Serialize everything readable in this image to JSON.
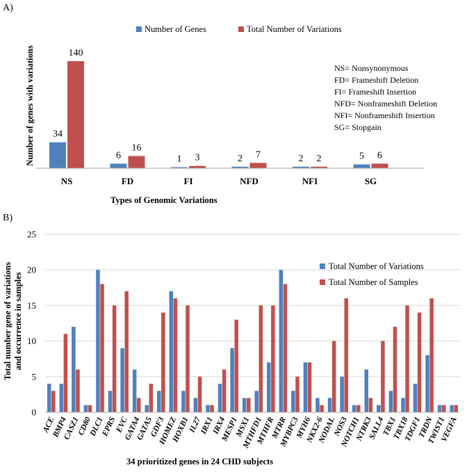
{
  "colors": {
    "blue": "#4f81bd",
    "red": "#c0504d",
    "axis": "#a6a6a6",
    "grid": "#d9d9d9"
  },
  "chart_data": [
    {
      "panel_label": "A)",
      "type": "bar",
      "categories": [
        "NS",
        "FD",
        "FI",
        "NFD",
        "NFI",
        "SG"
      ],
      "series": [
        {
          "name": "Number of Genes",
          "values": [
            34,
            6,
            1,
            2,
            2,
            5
          ]
        },
        {
          "name": "Total Number of Variations",
          "values": [
            140,
            16,
            3,
            7,
            2,
            6
          ]
        }
      ],
      "xlabel": "Types of Genomic Variations",
      "ylabel": "Number of genes with variations",
      "ylim": [
        0,
        140
      ],
      "legend": "top",
      "data_labels": true,
      "annotations": [
        "NS= Nonsynonymous",
        "FD= Frameshift Deletion",
        "FI= Frameshift Insertion",
        "NFD= Nonframeshift Deletion",
        "NFI= Nonframeshift Insertion",
        "SG= Stopgain"
      ]
    },
    {
      "panel_label": "B)",
      "type": "bar",
      "categories": [
        "ACE",
        "BMP4",
        "CASZ1",
        "CD80",
        "DLC1",
        "EPRS",
        "EVC",
        "GATA4",
        "GATA5",
        "GDF3",
        "HOMEZ",
        "HOXB1",
        "IL27",
        "IRX1",
        "IRX4",
        "MESP1",
        "MSX1",
        "MTHFD1",
        "MTHFR",
        "MTRR",
        "MYBPC3",
        "MYH6",
        "NKX2-6",
        "NODAL",
        "NOS3",
        "NOTCH1",
        "NTRK3",
        "SALL4",
        "TBX1",
        "TBX18",
        "TDGF1",
        "TRDN",
        "TWIST1",
        "VEGFA"
      ],
      "series": [
        {
          "name": "Total Number of Variations",
          "values": [
            4,
            4,
            12,
            1,
            20,
            3,
            9,
            6,
            1,
            3,
            17,
            3,
            2,
            1,
            4,
            9,
            2,
            3,
            7,
            20,
            3,
            7,
            2,
            2,
            5,
            1,
            6,
            1,
            3,
            2,
            4,
            8,
            1,
            1
          ]
        },
        {
          "name": "Total Number of Samples",
          "values": [
            3,
            11,
            6,
            1,
            18,
            15,
            17,
            2,
            4,
            14,
            16,
            15,
            5,
            1,
            6,
            13,
            2,
            15,
            15,
            18,
            5,
            7,
            1,
            10,
            16,
            1,
            2,
            10,
            12,
            15,
            14,
            16,
            1,
            1
          ]
        }
      ],
      "xlabel": "34 prioritized genes in 24 CHD subjects",
      "ylabel": [
        "Total number gene of variations",
        "and occurrence in samples"
      ],
      "ylim": [
        0,
        25
      ],
      "yticks": [
        0,
        5,
        10,
        15,
        20,
        25
      ],
      "grid": true,
      "legend": "right"
    }
  ]
}
